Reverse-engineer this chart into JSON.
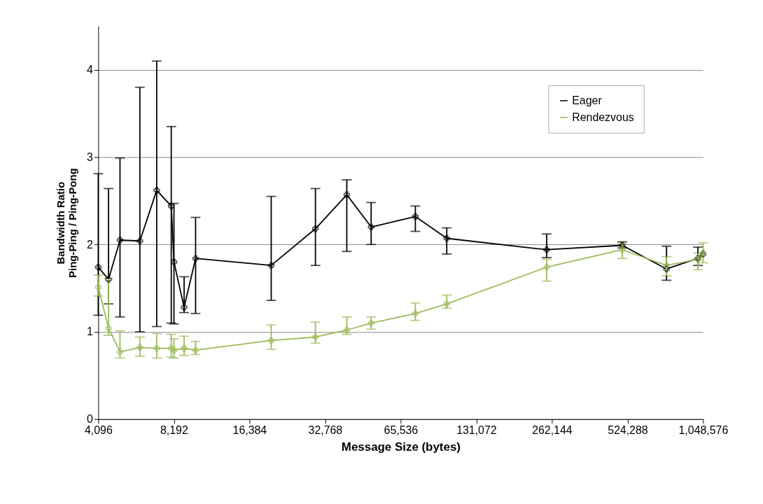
{
  "chart_data": {
    "type": "line",
    "xlabel": "Message Size (bytes)",
    "ylabel": "Bandwidth Ratio\nPing-Ping / Ping-Pong",
    "log": "x",
    "grid": "y",
    "legend": "top right",
    "marker": "cross",
    "line_style": "solid",
    "xlim": [
      4096,
      1048576
    ],
    "xticks": [
      {
        "value": 4096,
        "label": "4,096"
      },
      {
        "value": 8192,
        "label": "8,192"
      },
      {
        "value": 16384,
        "label": "16,384"
      },
      {
        "value": 32768,
        "label": "32,768"
      },
      {
        "value": 65536,
        "label": "65,536"
      },
      {
        "value": 131072,
        "label": "131,072"
      },
      {
        "value": 262144,
        "label": "262,144"
      },
      {
        "value": 524288,
        "label": "524,288"
      },
      {
        "value": 1048576,
        "label": "1,048,576"
      }
    ],
    "ylim": [
      0,
      4.5
    ],
    "yticks": [
      {
        "value": 0,
        "label": "0"
      },
      {
        "value": 1,
        "label": "1"
      },
      {
        "value": 2,
        "label": "2"
      },
      {
        "value": 3,
        "label": "3"
      },
      {
        "value": 4,
        "label": "4"
      }
    ],
    "series": [
      {
        "name": "Eager",
        "color": "#000000",
        "x": [
          4096,
          4500,
          5000,
          6000,
          7000,
          8000,
          8200,
          9000,
          10000,
          20000,
          30000,
          40000,
          50000,
          75000,
          100000,
          250000,
          500000,
          750000,
          1000000,
          1048576
        ],
        "values": [
          1.74,
          1.6,
          2.05,
          2.04,
          2.62,
          2.44,
          1.8,
          1.28,
          1.84,
          1.76,
          2.18,
          2.57,
          2.2,
          2.32,
          2.07,
          1.94,
          1.99,
          1.72,
          1.84,
          1.89
        ],
        "errors": [
          [
            1.19,
            2.81
          ],
          [
            1.32,
            2.64
          ],
          [
            1.17,
            2.99
          ],
          [
            1.0,
            3.8
          ],
          [
            1.06,
            4.1
          ],
          [
            1.1,
            3.35
          ],
          [
            1.09,
            2.47
          ],
          [
            1.22,
            1.63
          ],
          [
            1.21,
            2.31
          ],
          [
            1.36,
            2.55
          ],
          [
            1.76,
            2.64
          ],
          [
            1.92,
            2.74
          ],
          [
            2.0,
            2.48
          ],
          [
            2.15,
            2.44
          ],
          [
            1.89,
            2.19
          ],
          [
            1.85,
            2.12
          ],
          [
            1.96,
            2.03
          ],
          [
            1.59,
            1.98
          ],
          [
            1.76,
            1.97
          ],
          null
        ]
      },
      {
        "name": "Rendezvous",
        "color": "#9bbb59",
        "x": [
          4096,
          4500,
          5000,
          6000,
          7000,
          8000,
          8200,
          9000,
          10000,
          20000,
          30000,
          40000,
          50000,
          75000,
          100000,
          250000,
          500000,
          750000,
          1000000,
          1048576
        ],
        "values": [
          1.51,
          1.04,
          0.77,
          0.82,
          0.81,
          0.81,
          0.79,
          0.81,
          0.79,
          0.9,
          0.94,
          1.02,
          1.1,
          1.21,
          1.32,
          1.74,
          1.94,
          1.76,
          1.83,
          1.9
        ],
        "errors": [
          [
            1.41,
            1.65
          ],
          [
            0.96,
            1.61
          ],
          [
            0.7,
            1.01
          ],
          [
            0.72,
            0.94
          ],
          [
            0.7,
            0.98
          ],
          [
            0.71,
            0.97
          ],
          [
            0.7,
            0.92
          ],
          [
            0.73,
            0.95
          ],
          [
            0.74,
            0.89
          ],
          [
            0.8,
            1.08
          ],
          [
            0.87,
            1.11
          ],
          [
            0.97,
            1.17
          ],
          [
            1.03,
            1.17
          ],
          [
            1.13,
            1.33
          ],
          [
            1.27,
            1.42
          ],
          [
            1.58,
            1.83
          ],
          [
            1.84,
            2.02
          ],
          [
            1.64,
            1.86
          ],
          [
            1.71,
            1.9
          ],
          [
            1.79,
            2.02
          ]
        ]
      }
    ]
  }
}
